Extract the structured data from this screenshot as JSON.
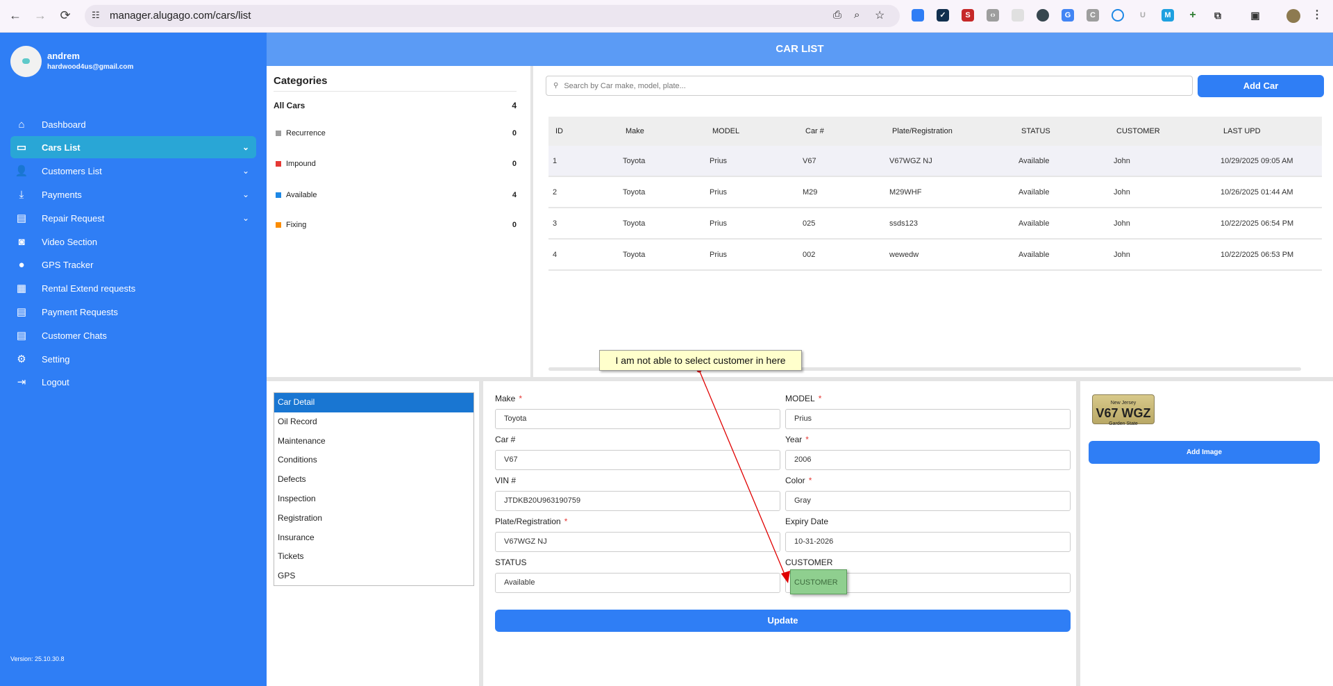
{
  "browser": {
    "url": "manager.alugago.com/cars/list",
    "back_icon": "←",
    "forward_icon": "→",
    "reload_icon": "⟳"
  },
  "sidebar": {
    "user": {
      "name": "andrem",
      "email": "hardwood4us@gmail.com"
    },
    "items": [
      {
        "label": "Dashboard",
        "icon": "⌂",
        "chev": ""
      },
      {
        "label": "Cars List",
        "icon": "▭",
        "chev": "⌄"
      },
      {
        "label": "Customers List",
        "icon": "👤",
        "chev": "⌄"
      },
      {
        "label": "Payments",
        "icon": "⤓",
        "chev": "⌄"
      },
      {
        "label": "Repair Request",
        "icon": "▤",
        "chev": "⌄"
      },
      {
        "label": "Video Section",
        "icon": "◙",
        "chev": ""
      },
      {
        "label": "GPS Tracker",
        "icon": "●",
        "chev": ""
      },
      {
        "label": "Rental Extend requests",
        "icon": "▦",
        "chev": ""
      },
      {
        "label": "Payment Requests",
        "icon": "▤",
        "chev": ""
      },
      {
        "label": "Customer Chats",
        "icon": "▤",
        "chev": ""
      },
      {
        "label": "Setting",
        "icon": "⚙",
        "chev": ""
      },
      {
        "label": "Logout",
        "icon": "⇥",
        "chev": ""
      }
    ],
    "version": "Version: 25.10.30.8"
  },
  "header": {
    "title": "CAR LIST"
  },
  "categories": {
    "title": "Categories",
    "all": {
      "label": "All Cars",
      "count": "4"
    },
    "items": [
      {
        "label": "Recurrence",
        "count": "0",
        "color": "#9e9e9e"
      },
      {
        "label": "Impound",
        "count": "0",
        "color": "#e53935"
      },
      {
        "label": "Available",
        "count": "4",
        "color": "#1e88e5"
      },
      {
        "label": "Fixing",
        "count": "0",
        "color": "#fb8c00"
      }
    ]
  },
  "search": {
    "placeholder": "Search by Car make, model, plate...",
    "icon": "🔍"
  },
  "add_car_label": "Add Car",
  "table": {
    "columns": [
      "ID",
      "Make",
      "MODEL",
      "Car #",
      "Plate/Registration",
      "STATUS",
      "CUSTOMER",
      "LAST UPD"
    ],
    "rows": [
      [
        "1",
        "Toyota",
        "Prius",
        "V67",
        "V67WGZ NJ",
        "Available",
        "John",
        "10/29/2025 09:05 AM"
      ],
      [
        "2",
        "Toyota",
        "Prius",
        "M29",
        "M29WHF",
        "Available",
        "John",
        "10/26/2025 01:44 AM"
      ],
      [
        "3",
        "Toyota",
        "Prius",
        "025",
        "ssds123",
        "Available",
        "John",
        "10/22/2025 06:54 PM"
      ],
      [
        "4",
        "Toyota",
        "Prius",
        "002",
        "wewedw",
        "Available",
        "John",
        "10/22/2025 06:53 PM"
      ]
    ]
  },
  "subnav": [
    "Car Detail",
    "Oil Record",
    "Maintenance",
    "Conditions",
    "Defects",
    "Inspection",
    "Registration",
    "Insurance",
    "Tickets",
    "GPS"
  ],
  "form": {
    "fields": [
      {
        "label": "Make",
        "required": "*",
        "value": "Toyota"
      },
      {
        "label": "MODEL",
        "required": "*",
        "value": "Prius"
      },
      {
        "label": "Car #",
        "required": "",
        "value": "V67"
      },
      {
        "label": "Year",
        "required": "*",
        "value": "2006"
      },
      {
        "label": "VIN #",
        "required": "",
        "value": "JTDKB20U963190759"
      },
      {
        "label": "Color",
        "required": "*",
        "value": "Gray"
      },
      {
        "label": "Plate/Registration",
        "required": "*",
        "value": "V67WGZ NJ"
      },
      {
        "label": "Expiry Date",
        "required": "",
        "value": "10-31-2026"
      },
      {
        "label": "STATUS",
        "required": "",
        "value": "Available"
      },
      {
        "label": "CUSTOMER",
        "required": "",
        "value": ""
      }
    ],
    "customer_placeholder": "CUSTOMER",
    "update_label": "Update"
  },
  "image_panel": {
    "plate_top": "New Jersey",
    "plate_number": "V67 WGZ",
    "plate_bottom": "Garden State",
    "add_image_label": "Add Image"
  },
  "annotation": {
    "text": "I am not able to select customer in here",
    "highlight_text": "CUSTOMER",
    "arrow_color": "#e00000"
  }
}
